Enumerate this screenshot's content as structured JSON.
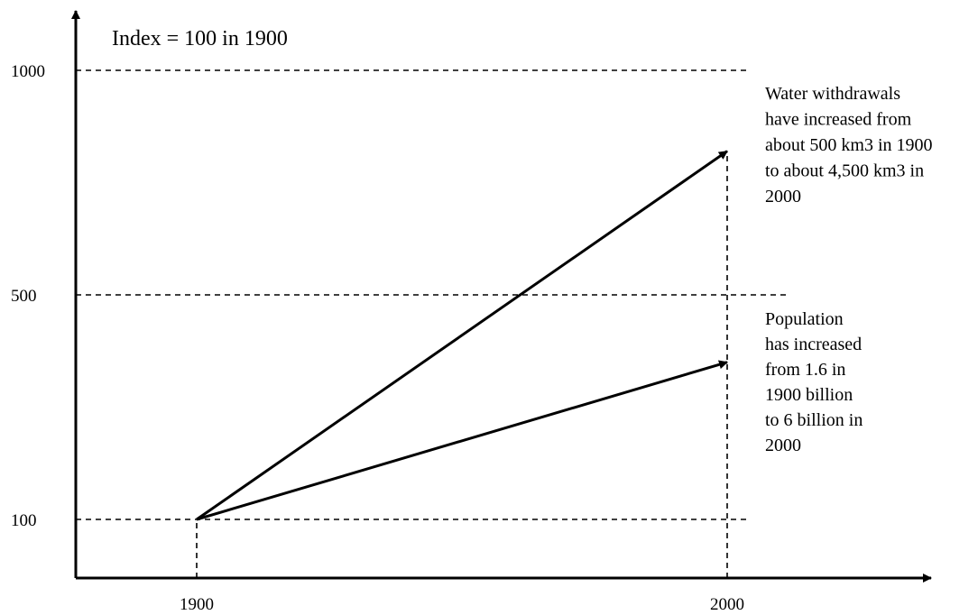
{
  "chart_data": {
    "type": "line",
    "title": "Index = 100 in 1900",
    "xlabel": "",
    "ylabel": "",
    "x": [
      1900,
      2000
    ],
    "x_tick_labels": [
      "1900",
      "2000"
    ],
    "y_ticks": [
      100,
      500,
      1000
    ],
    "y_tick_labels": [
      "100",
      "500",
      "1000"
    ],
    "ylim": [
      0,
      1000
    ],
    "grid": "dashed reference lines at 100, 500 and 1000",
    "series": [
      {
        "values": [
          100,
          820
        ],
        "annotation": [
          "Water withdrawals",
          "have increased from",
          "about 500 km3 in 1900",
          "to about 4,500 km3 in",
          "2000"
        ]
      },
      {
        "values": [
          100,
          380
        ],
        "annotation": [
          "Population",
          "has increased",
          "from 1.6 in",
          "1900 billion",
          "to 6 billion in",
          "2000"
        ]
      }
    ],
    "colors": {
      "lines": "#000000",
      "background": "#ffffff"
    }
  }
}
